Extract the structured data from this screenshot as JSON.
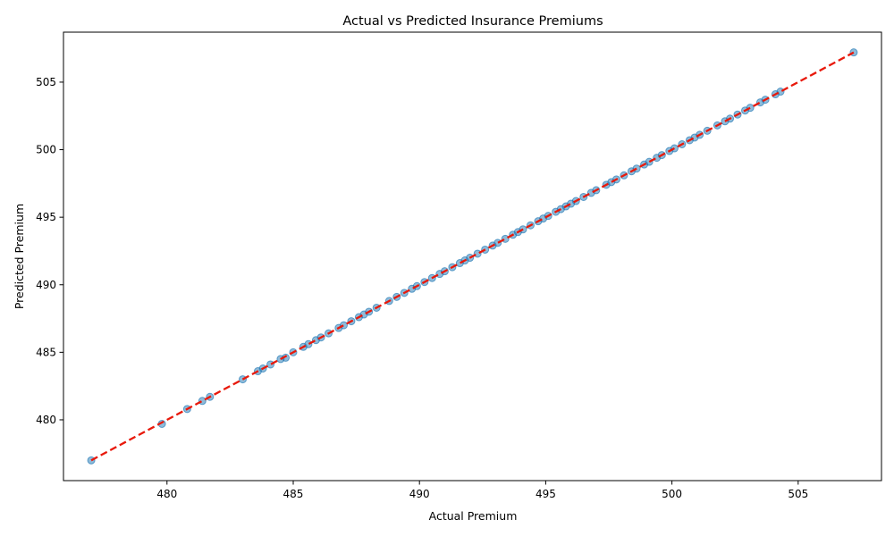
{
  "chart_data": {
    "type": "scatter",
    "title": "Actual vs Predicted Insurance Premiums",
    "xlabel": "Actual Premium",
    "ylabel": "Predicted Premium",
    "xlim": [
      475.9,
      508.3
    ],
    "ylim": [
      475.5,
      508.7
    ],
    "xticks": [
      480,
      485,
      490,
      495,
      500,
      505
    ],
    "yticks": [
      480,
      485,
      490,
      495,
      500,
      505
    ],
    "grid": false,
    "colors": {
      "points": "#1f77b4",
      "reference_line": "#e8190b"
    },
    "reference_line": {
      "style": "dashed",
      "from": [
        477.0,
        477.0
      ],
      "to": [
        507.2,
        507.2
      ]
    },
    "points": [
      [
        477.0,
        477.0
      ],
      [
        479.8,
        479.7
      ],
      [
        480.8,
        480.8
      ],
      [
        481.4,
        481.4
      ],
      [
        481.7,
        481.7
      ],
      [
        483.0,
        483.0
      ],
      [
        483.6,
        483.6
      ],
      [
        483.8,
        483.8
      ],
      [
        484.1,
        484.1
      ],
      [
        484.5,
        484.5
      ],
      [
        484.7,
        484.6
      ],
      [
        485.0,
        485.0
      ],
      [
        485.4,
        485.4
      ],
      [
        485.6,
        485.6
      ],
      [
        485.9,
        485.9
      ],
      [
        486.1,
        486.1
      ],
      [
        486.4,
        486.4
      ],
      [
        486.8,
        486.8
      ],
      [
        487.0,
        487.0
      ],
      [
        487.3,
        487.3
      ],
      [
        487.6,
        487.6
      ],
      [
        487.8,
        487.8
      ],
      [
        488.0,
        488.0
      ],
      [
        488.3,
        488.3
      ],
      [
        488.8,
        488.8
      ],
      [
        489.1,
        489.1
      ],
      [
        489.4,
        489.4
      ],
      [
        489.7,
        489.7
      ],
      [
        489.9,
        489.9
      ],
      [
        490.2,
        490.2
      ],
      [
        490.5,
        490.5
      ],
      [
        490.8,
        490.8
      ],
      [
        491.0,
        491.0
      ],
      [
        491.3,
        491.3
      ],
      [
        491.6,
        491.6
      ],
      [
        491.8,
        491.8
      ],
      [
        492.0,
        492.0
      ],
      [
        492.3,
        492.3
      ],
      [
        492.6,
        492.6
      ],
      [
        492.9,
        492.9
      ],
      [
        493.1,
        493.1
      ],
      [
        493.4,
        493.4
      ],
      [
        493.7,
        493.7
      ],
      [
        493.9,
        493.9
      ],
      [
        494.1,
        494.1
      ],
      [
        494.4,
        494.4
      ],
      [
        494.7,
        494.7
      ],
      [
        494.9,
        494.9
      ],
      [
        495.1,
        495.1
      ],
      [
        495.4,
        495.4
      ],
      [
        495.6,
        495.6
      ],
      [
        495.8,
        495.8
      ],
      [
        496.0,
        496.0
      ],
      [
        496.2,
        496.2
      ],
      [
        496.5,
        496.5
      ],
      [
        496.8,
        496.8
      ],
      [
        497.0,
        497.0
      ],
      [
        497.4,
        497.4
      ],
      [
        497.6,
        497.6
      ],
      [
        497.8,
        497.8
      ],
      [
        498.1,
        498.1
      ],
      [
        498.4,
        498.4
      ],
      [
        498.6,
        498.6
      ],
      [
        498.9,
        498.9
      ],
      [
        499.1,
        499.1
      ],
      [
        499.4,
        499.4
      ],
      [
        499.6,
        499.6
      ],
      [
        499.9,
        499.9
      ],
      [
        500.1,
        500.1
      ],
      [
        500.4,
        500.4
      ],
      [
        500.7,
        500.7
      ],
      [
        500.9,
        500.9
      ],
      [
        501.1,
        501.1
      ],
      [
        501.4,
        501.4
      ],
      [
        501.8,
        501.8
      ],
      [
        502.1,
        502.1
      ],
      [
        502.3,
        502.3
      ],
      [
        502.6,
        502.6
      ],
      [
        502.9,
        502.9
      ],
      [
        503.1,
        503.1
      ],
      [
        503.5,
        503.5
      ],
      [
        503.7,
        503.7
      ],
      [
        504.1,
        504.1
      ],
      [
        504.3,
        504.3
      ],
      [
        507.2,
        507.2
      ]
    ]
  }
}
